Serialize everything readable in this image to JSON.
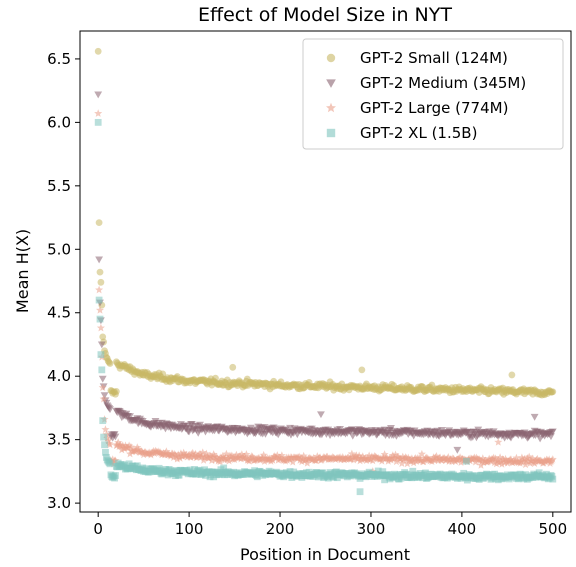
{
  "chart_data": {
    "type": "scatter",
    "title": "Effect of Model Size in NYT",
    "xlabel": "Position in Document",
    "ylabel": "Mean H(X)",
    "xlim": [
      -20,
      520
    ],
    "ylim": [
      2.93,
      6.72
    ],
    "xticks": [
      0,
      100,
      200,
      300,
      400,
      500
    ],
    "yticks": [
      3.0,
      3.5,
      4.0,
      4.5,
      5.0,
      5.5,
      6.0,
      6.5
    ],
    "xtick_labels": [
      "0",
      "100",
      "200",
      "300",
      "400",
      "500"
    ],
    "ytick_labels": [
      "3.0",
      "3.5",
      "4.0",
      "4.5",
      "5.0",
      "5.5",
      "6.0",
      "6.5"
    ],
    "grid": false,
    "legend_position": "top-right",
    "x_range": [
      0,
      500
    ],
    "series": [
      {
        "name": "GPT-2 Small (124M)",
        "marker": "circle",
        "color": "#c8b866",
        "head": [
          6.56,
          5.21,
          4.82,
          4.74,
          4.56,
          4.31,
          4.27,
          4.2,
          4.18,
          4.15,
          4.14,
          4.12,
          4.11,
          4.1
        ],
        "plateau": [
          [
            20,
            4.1
          ],
          [
            50,
            4.01
          ],
          [
            100,
            3.96
          ],
          [
            200,
            3.93
          ],
          [
            300,
            3.91
          ],
          [
            400,
            3.89
          ],
          [
            500,
            3.87
          ]
        ],
        "outliers": [
          [
            148,
            4.07
          ],
          [
            290,
            4.05
          ],
          [
            455,
            4.01
          ],
          [
            20,
            3.88
          ]
        ]
      },
      {
        "name": "GPT-2 Medium (345M)",
        "marker": "triangle-down",
        "color": "#8b6471",
        "head": [
          6.22,
          4.92,
          4.58,
          4.44,
          4.25,
          3.98,
          3.92,
          3.85,
          3.81,
          3.79,
          3.77,
          3.76,
          3.75,
          3.74
        ],
        "plateau": [
          [
            20,
            3.72
          ],
          [
            50,
            3.63
          ],
          [
            100,
            3.59
          ],
          [
            200,
            3.57
          ],
          [
            300,
            3.56
          ],
          [
            400,
            3.55
          ],
          [
            500,
            3.54
          ]
        ],
        "outliers": [
          [
            245,
            3.7
          ],
          [
            395,
            3.42
          ],
          [
            480,
            3.68
          ]
        ]
      },
      {
        "name": "GPT-2 Large (774M)",
        "marker": "star",
        "color": "#e9a08a",
        "head": [
          6.07,
          4.68,
          4.52,
          4.38,
          4.15,
          3.91,
          3.82,
          3.66,
          3.58,
          3.54,
          3.51,
          3.49,
          3.47,
          3.46
        ],
        "plateau": [
          [
            20,
            3.46
          ],
          [
            50,
            3.4
          ],
          [
            100,
            3.37
          ],
          [
            200,
            3.35
          ],
          [
            300,
            3.35
          ],
          [
            400,
            3.34
          ],
          [
            500,
            3.33
          ]
        ],
        "outliers": [
          [
            302,
            3.25
          ],
          [
            440,
            3.48
          ]
        ]
      },
      {
        "name": "GPT-2 XL (1.5B)",
        "marker": "square",
        "color": "#7fc4be",
        "head": [
          6.0,
          4.6,
          4.45,
          4.17,
          4.05,
          3.65,
          3.52,
          3.46,
          3.4,
          3.36,
          3.34,
          3.33,
          3.32,
          3.31
        ],
        "plateau": [
          [
            20,
            3.3
          ],
          [
            50,
            3.26
          ],
          [
            100,
            3.24
          ],
          [
            200,
            3.23
          ],
          [
            300,
            3.22
          ],
          [
            400,
            3.21
          ],
          [
            500,
            3.21
          ]
        ],
        "outliers": [
          [
            288,
            3.09
          ],
          [
            405,
            3.33
          ]
        ]
      }
    ]
  }
}
